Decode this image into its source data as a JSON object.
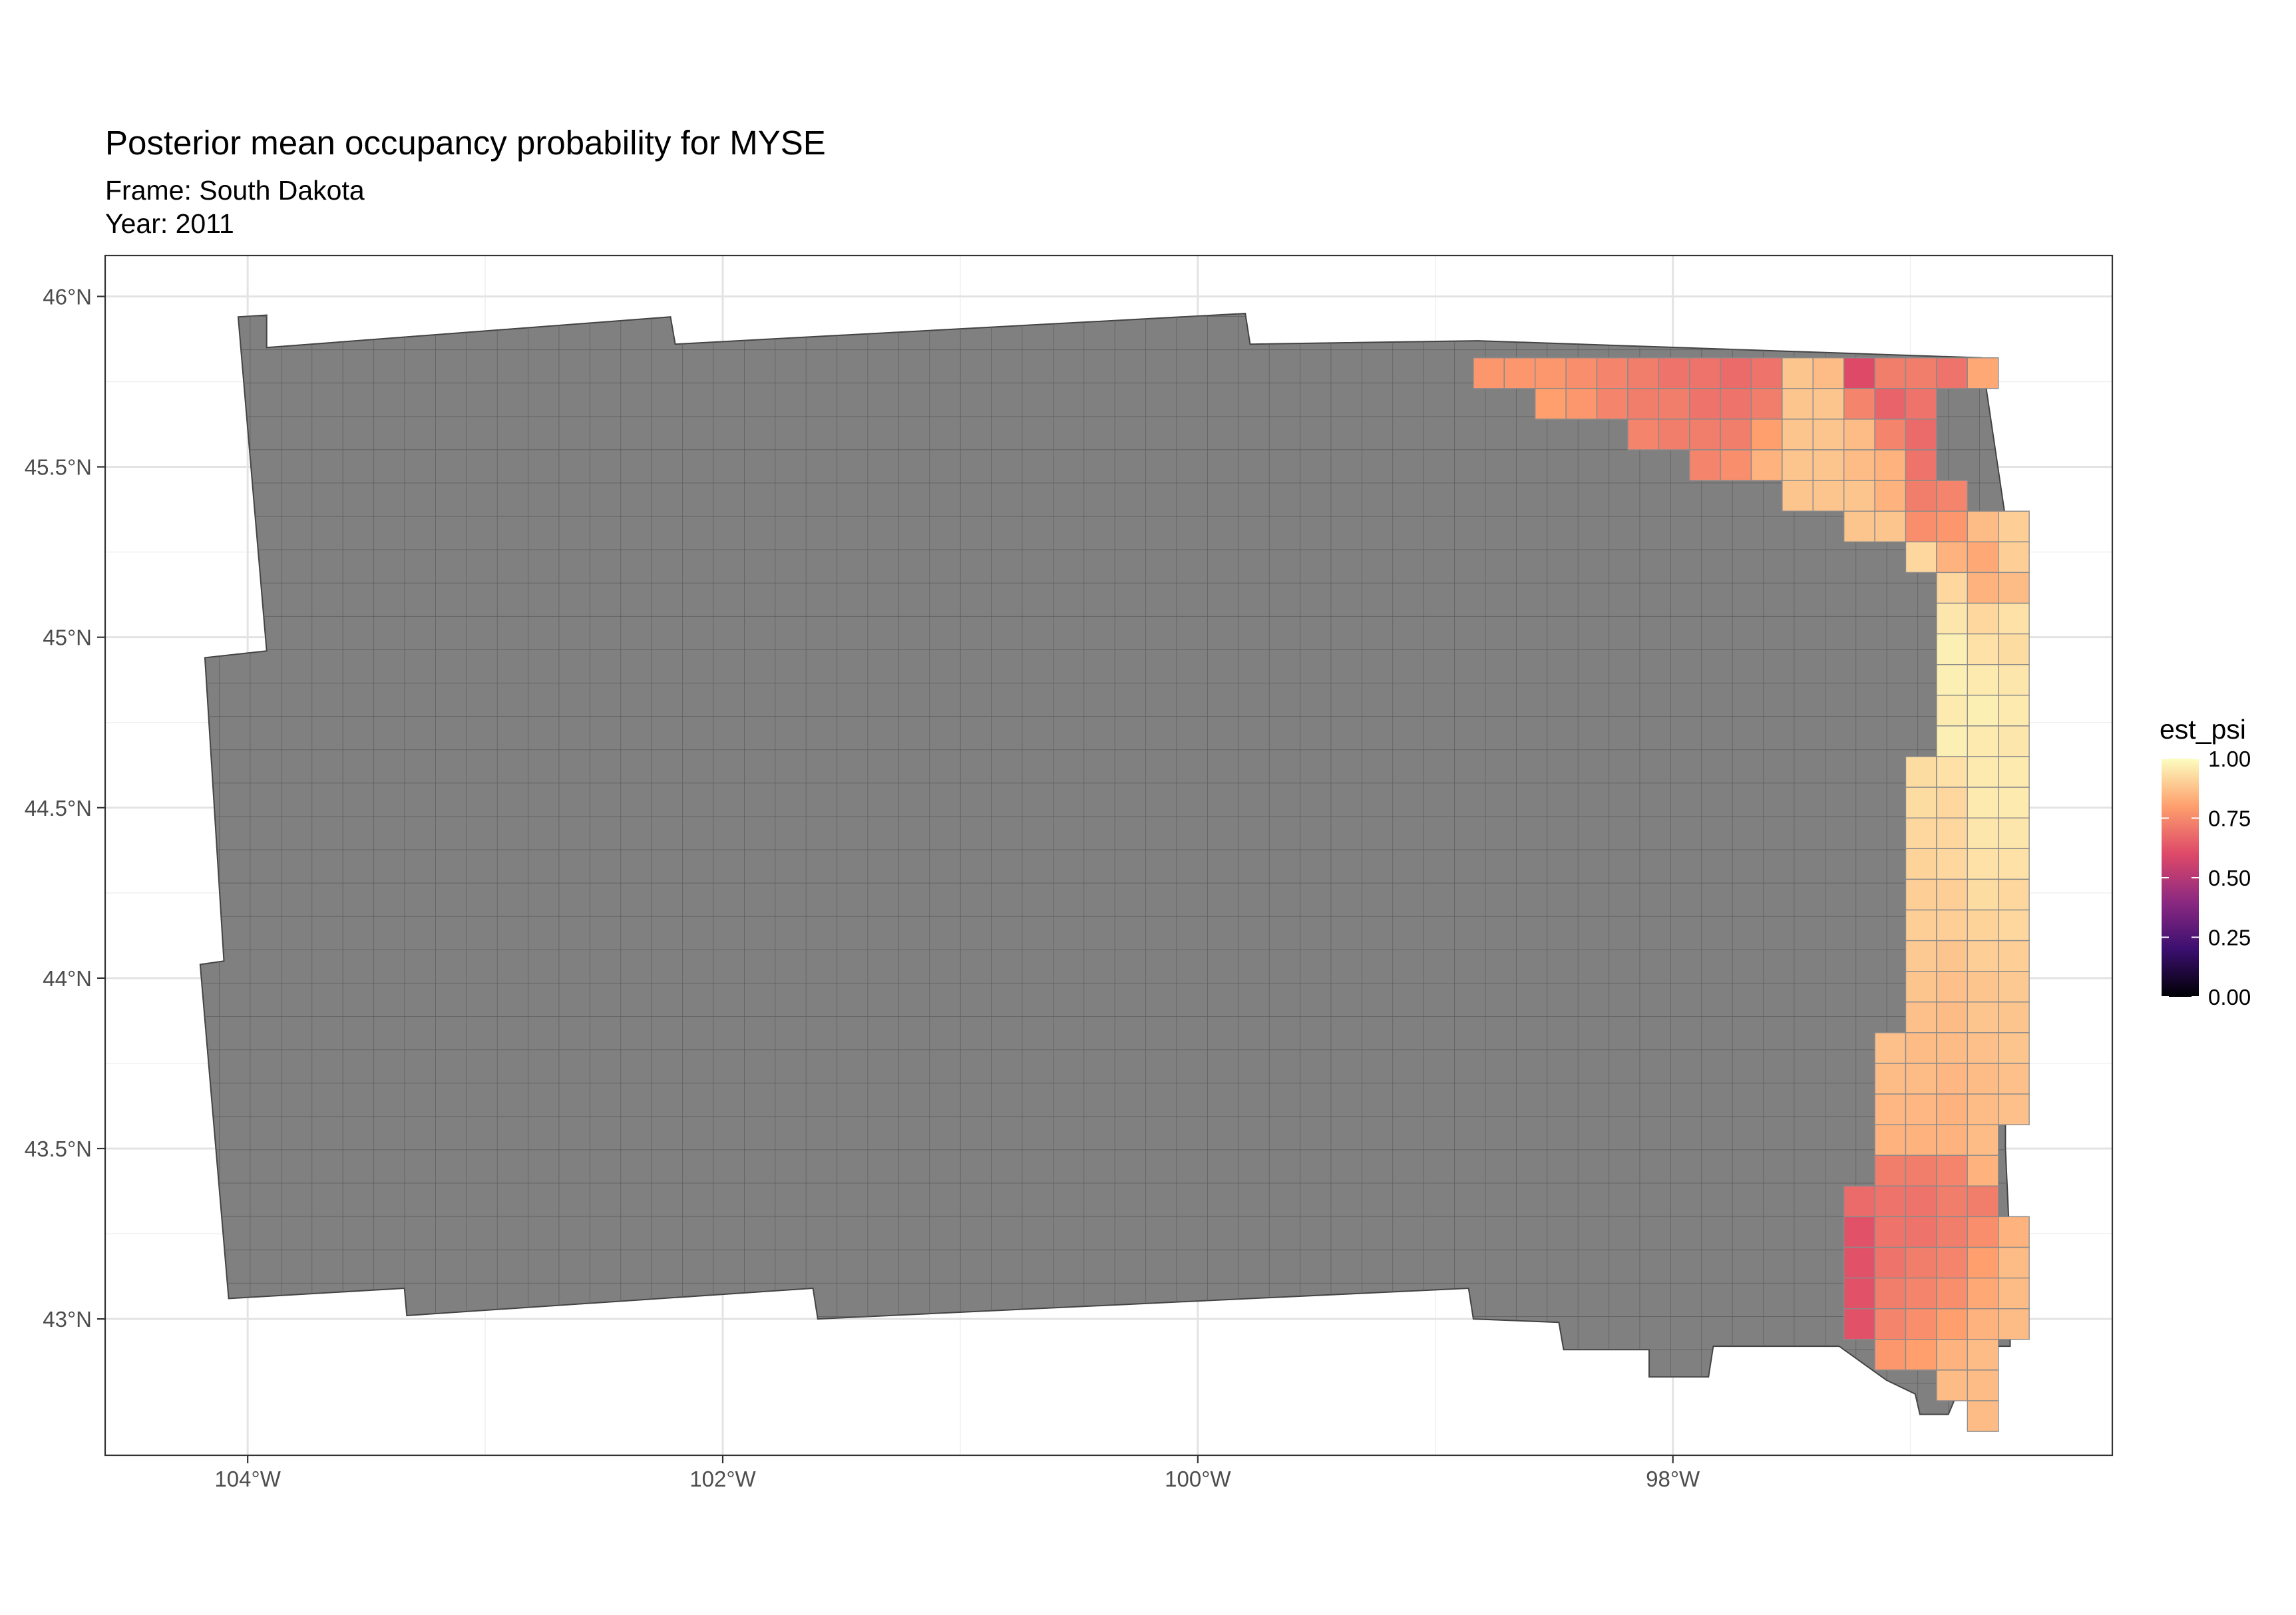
{
  "chart_data": {
    "type": "heatmap",
    "title": "Posterior mean occupancy probability for MYSE",
    "subtitle_lines": [
      "Frame: South Dakota",
      "Year: 2011"
    ],
    "x_axis": {
      "ticks": [
        -104,
        -102,
        -100,
        -98
      ],
      "tick_labels": [
        "104°W",
        "102°W",
        "100°W",
        "98°W"
      ],
      "range": [
        -104.6,
        -96.15
      ]
    },
    "y_axis": {
      "ticks": [
        43,
        43.5,
        44,
        44.5,
        45,
        45.5,
        46
      ],
      "tick_labels": [
        "43°N",
        "43.5°N",
        "44°N",
        "44.5°N",
        "45°N",
        "45.5°N",
        "46°N"
      ],
      "range": [
        42.6,
        46.12
      ]
    },
    "grid": true,
    "legend": {
      "title": "est_psi",
      "placement": "right",
      "ticks": [
        0.0,
        0.25,
        0.5,
        0.75,
        1.0
      ],
      "tick_labels": [
        "0.00",
        "0.25",
        "0.50",
        "0.75",
        "1.00"
      ],
      "palette": [
        "#000004",
        "#3b0f70",
        "#8c2981",
        "#de4968",
        "#fe9f6d",
        "#fcfdbf"
      ]
    },
    "na_color": "#808080",
    "cell_size_deg": {
      "lon": 0.13,
      "lat": 0.09
    },
    "frame_outline_lonlat": [
      [
        -104.04,
        45.94
      ],
      [
        -103.92,
        45.945
      ],
      [
        -103.92,
        45.85
      ],
      [
        -102.22,
        45.94
      ],
      [
        -102.2,
        45.86
      ],
      [
        -99.8,
        45.95
      ],
      [
        -99.78,
        45.86
      ],
      [
        -98.82,
        45.87
      ],
      [
        -96.7,
        45.82
      ],
      [
        -96.6,
        45.35
      ],
      [
        -96.6,
        43.5
      ],
      [
        -96.58,
        43.2
      ],
      [
        -96.58,
        42.92
      ],
      [
        -96.72,
        42.92
      ],
      [
        -96.84,
        42.72
      ],
      [
        -96.96,
        42.72
      ],
      [
        -96.98,
        42.78
      ],
      [
        -97.1,
        42.82
      ],
      [
        -97.3,
        42.92
      ],
      [
        -97.83,
        42.92
      ],
      [
        -97.85,
        42.83
      ],
      [
        -98.1,
        42.83
      ],
      [
        -98.1,
        42.91
      ],
      [
        -98.46,
        42.91
      ],
      [
        -98.48,
        42.99
      ],
      [
        -98.84,
        43.0
      ],
      [
        -98.86,
        43.09
      ],
      [
        -101.6,
        43.0
      ],
      [
        -101.62,
        43.09
      ],
      [
        -103.33,
        43.01
      ],
      [
        -103.34,
        43.09
      ],
      [
        -104.08,
        43.06
      ],
      [
        -104.2,
        44.04
      ],
      [
        -104.1,
        44.05
      ],
      [
        -104.18,
        44.94
      ],
      [
        -103.92,
        44.96
      ]
    ],
    "estimated_cells": {
      "description": "grid cells with est_psi estimates; lon/lat are cell lower-left corners",
      "cells": [
        {
          "lon": -98.84,
          "lat": 45.73,
          "value": 0.78
        },
        {
          "lon": -98.71,
          "lat": 45.73,
          "value": 0.78
        },
        {
          "lon": -98.58,
          "lat": 45.73,
          "value": 0.78
        },
        {
          "lon": -98.45,
          "lat": 45.73,
          "value": 0.76
        },
        {
          "lon": -98.32,
          "lat": 45.73,
          "value": 0.74
        },
        {
          "lon": -98.19,
          "lat": 45.73,
          "value": 0.72
        },
        {
          "lon": -98.06,
          "lat": 45.73,
          "value": 0.7
        },
        {
          "lon": -97.93,
          "lat": 45.73,
          "value": 0.7
        },
        {
          "lon": -97.8,
          "lat": 45.73,
          "value": 0.68
        },
        {
          "lon": -97.67,
          "lat": 45.73,
          "value": 0.7
        },
        {
          "lon": -97.54,
          "lat": 45.73,
          "value": 0.88
        },
        {
          "lon": -97.41,
          "lat": 45.73,
          "value": 0.86
        },
        {
          "lon": -97.28,
          "lat": 45.73,
          "value": 0.6
        },
        {
          "lon": -97.15,
          "lat": 45.73,
          "value": 0.72
        },
        {
          "lon": -97.02,
          "lat": 45.73,
          "value": 0.72
        },
        {
          "lon": -96.89,
          "lat": 45.73,
          "value": 0.7
        },
        {
          "lon": -96.76,
          "lat": 45.73,
          "value": 0.82
        },
        {
          "lon": -98.58,
          "lat": 45.64,
          "value": 0.8
        },
        {
          "lon": -98.45,
          "lat": 45.64,
          "value": 0.78
        },
        {
          "lon": -98.32,
          "lat": 45.64,
          "value": 0.74
        },
        {
          "lon": -98.19,
          "lat": 45.64,
          "value": 0.72
        },
        {
          "lon": -98.06,
          "lat": 45.64,
          "value": 0.72
        },
        {
          "lon": -97.93,
          "lat": 45.64,
          "value": 0.7
        },
        {
          "lon": -97.8,
          "lat": 45.64,
          "value": 0.7
        },
        {
          "lon": -97.67,
          "lat": 45.64,
          "value": 0.72
        },
        {
          "lon": -97.54,
          "lat": 45.64,
          "value": 0.88
        },
        {
          "lon": -97.41,
          "lat": 45.64,
          "value": 0.88
        },
        {
          "lon": -97.28,
          "lat": 45.64,
          "value": 0.74
        },
        {
          "lon": -97.15,
          "lat": 45.64,
          "value": 0.66
        },
        {
          "lon": -97.02,
          "lat": 45.64,
          "value": 0.7
        },
        {
          "lon": -98.19,
          "lat": 45.55,
          "value": 0.74
        },
        {
          "lon": -98.06,
          "lat": 45.55,
          "value": 0.72
        },
        {
          "lon": -97.93,
          "lat": 45.55,
          "value": 0.72
        },
        {
          "lon": -97.8,
          "lat": 45.55,
          "value": 0.72
        },
        {
          "lon": -97.67,
          "lat": 45.55,
          "value": 0.8
        },
        {
          "lon": -97.54,
          "lat": 45.55,
          "value": 0.88
        },
        {
          "lon": -97.41,
          "lat": 45.55,
          "value": 0.88
        },
        {
          "lon": -97.28,
          "lat": 45.55,
          "value": 0.86
        },
        {
          "lon": -97.15,
          "lat": 45.55,
          "value": 0.74
        },
        {
          "lon": -97.02,
          "lat": 45.55,
          "value": 0.68
        },
        {
          "lon": -97.93,
          "lat": 45.46,
          "value": 0.74
        },
        {
          "lon": -97.8,
          "lat": 45.46,
          "value": 0.76
        },
        {
          "lon": -97.67,
          "lat": 45.46,
          "value": 0.84
        },
        {
          "lon": -97.54,
          "lat": 45.46,
          "value": 0.88
        },
        {
          "lon": -97.41,
          "lat": 45.46,
          "value": 0.88
        },
        {
          "lon": -97.28,
          "lat": 45.46,
          "value": 0.86
        },
        {
          "lon": -97.15,
          "lat": 45.46,
          "value": 0.84
        },
        {
          "lon": -97.02,
          "lat": 45.46,
          "value": 0.7
        },
        {
          "lon": -97.54,
          "lat": 45.37,
          "value": 0.88
        },
        {
          "lon": -97.41,
          "lat": 45.37,
          "value": 0.88
        },
        {
          "lon": -97.28,
          "lat": 45.37,
          "value": 0.88
        },
        {
          "lon": -97.15,
          "lat": 45.37,
          "value": 0.84
        },
        {
          "lon": -97.02,
          "lat": 45.37,
          "value": 0.72
        },
        {
          "lon": -96.89,
          "lat": 45.37,
          "value": 0.74
        },
        {
          "lon": -97.28,
          "lat": 45.28,
          "value": 0.88
        },
        {
          "lon": -97.15,
          "lat": 45.28,
          "value": 0.88
        },
        {
          "lon": -97.02,
          "lat": 45.28,
          "value": 0.76
        },
        {
          "lon": -96.89,
          "lat": 45.28,
          "value": 0.78
        },
        {
          "lon": -96.76,
          "lat": 45.28,
          "value": 0.86
        },
        {
          "lon": -96.63,
          "lat": 45.28,
          "value": 0.9
        },
        {
          "lon": -97.02,
          "lat": 45.19,
          "value": 0.92
        },
        {
          "lon": -96.89,
          "lat": 45.19,
          "value": 0.84
        },
        {
          "lon": -96.76,
          "lat": 45.19,
          "value": 0.82
        },
        {
          "lon": -96.63,
          "lat": 45.19,
          "value": 0.9
        },
        {
          "lon": -96.89,
          "lat": 45.1,
          "value": 0.92
        },
        {
          "lon": -96.76,
          "lat": 45.1,
          "value": 0.84
        },
        {
          "lon": -96.63,
          "lat": 45.1,
          "value": 0.86
        },
        {
          "lon": -96.89,
          "lat": 45.01,
          "value": 0.95
        },
        {
          "lon": -96.76,
          "lat": 45.01,
          "value": 0.92
        },
        {
          "lon": -96.63,
          "lat": 45.01,
          "value": 0.94
        },
        {
          "lon": -96.89,
          "lat": 44.92,
          "value": 0.97
        },
        {
          "lon": -96.76,
          "lat": 44.92,
          "value": 0.94
        },
        {
          "lon": -96.63,
          "lat": 44.92,
          "value": 0.93
        },
        {
          "lon": -96.89,
          "lat": 44.83,
          "value": 0.97
        },
        {
          "lon": -96.76,
          "lat": 44.83,
          "value": 0.96
        },
        {
          "lon": -96.63,
          "lat": 44.83,
          "value": 0.95
        },
        {
          "lon": -96.89,
          "lat": 44.74,
          "value": 0.96
        },
        {
          "lon": -96.76,
          "lat": 44.74,
          "value": 0.97
        },
        {
          "lon": -96.63,
          "lat": 44.74,
          "value": 0.96
        },
        {
          "lon": -96.89,
          "lat": 44.65,
          "value": 0.97
        },
        {
          "lon": -96.76,
          "lat": 44.65,
          "value": 0.96
        },
        {
          "lon": -96.63,
          "lat": 44.65,
          "value": 0.95
        },
        {
          "lon": -97.02,
          "lat": 44.56,
          "value": 0.93
        },
        {
          "lon": -96.89,
          "lat": 44.56,
          "value": 0.94
        },
        {
          "lon": -96.76,
          "lat": 44.56,
          "value": 0.96
        },
        {
          "lon": -96.63,
          "lat": 44.56,
          "value": 0.96
        },
        {
          "lon": -97.02,
          "lat": 44.47,
          "value": 0.93
        },
        {
          "lon": -96.89,
          "lat": 44.47,
          "value": 0.92
        },
        {
          "lon": -96.76,
          "lat": 44.47,
          "value": 0.96
        },
        {
          "lon": -96.63,
          "lat": 44.47,
          "value": 0.96
        },
        {
          "lon": -97.02,
          "lat": 44.38,
          "value": 0.92
        },
        {
          "lon": -96.89,
          "lat": 44.38,
          "value": 0.92
        },
        {
          "lon": -96.76,
          "lat": 44.38,
          "value": 0.95
        },
        {
          "lon": -96.63,
          "lat": 44.38,
          "value": 0.95
        },
        {
          "lon": -97.02,
          "lat": 44.29,
          "value": 0.91
        },
        {
          "lon": -96.89,
          "lat": 44.29,
          "value": 0.92
        },
        {
          "lon": -96.76,
          "lat": 44.29,
          "value": 0.94
        },
        {
          "lon": -96.63,
          "lat": 44.29,
          "value": 0.94
        },
        {
          "lon": -97.02,
          "lat": 44.2,
          "value": 0.9
        },
        {
          "lon": -96.89,
          "lat": 44.2,
          "value": 0.9
        },
        {
          "lon": -96.76,
          "lat": 44.2,
          "value": 0.93
        },
        {
          "lon": -96.63,
          "lat": 44.2,
          "value": 0.92
        },
        {
          "lon": -97.02,
          "lat": 44.11,
          "value": 0.9
        },
        {
          "lon": -96.89,
          "lat": 44.11,
          "value": 0.9
        },
        {
          "lon": -96.76,
          "lat": 44.11,
          "value": 0.91
        },
        {
          "lon": -96.63,
          "lat": 44.11,
          "value": 0.92
        },
        {
          "lon": -97.02,
          "lat": 44.02,
          "value": 0.89
        },
        {
          "lon": -96.89,
          "lat": 44.02,
          "value": 0.88
        },
        {
          "lon": -96.76,
          "lat": 44.02,
          "value": 0.9
        },
        {
          "lon": -96.63,
          "lat": 44.02,
          "value": 0.9
        },
        {
          "lon": -97.02,
          "lat": 43.93,
          "value": 0.88
        },
        {
          "lon": -96.89,
          "lat": 43.93,
          "value": 0.87
        },
        {
          "lon": -96.76,
          "lat": 43.93,
          "value": 0.88
        },
        {
          "lon": -96.63,
          "lat": 43.93,
          "value": 0.89
        },
        {
          "lon": -97.02,
          "lat": 43.84,
          "value": 0.87
        },
        {
          "lon": -96.89,
          "lat": 43.84,
          "value": 0.86
        },
        {
          "lon": -96.76,
          "lat": 43.84,
          "value": 0.88
        },
        {
          "lon": -96.63,
          "lat": 43.84,
          "value": 0.88
        },
        {
          "lon": -97.15,
          "lat": 43.75,
          "value": 0.87
        },
        {
          "lon": -97.02,
          "lat": 43.75,
          "value": 0.86
        },
        {
          "lon": -96.89,
          "lat": 43.75,
          "value": 0.86
        },
        {
          "lon": -96.76,
          "lat": 43.75,
          "value": 0.87
        },
        {
          "lon": -96.63,
          "lat": 43.75,
          "value": 0.88
        },
        {
          "lon": -97.15,
          "lat": 43.66,
          "value": 0.86
        },
        {
          "lon": -97.02,
          "lat": 43.66,
          "value": 0.86
        },
        {
          "lon": -96.89,
          "lat": 43.66,
          "value": 0.85
        },
        {
          "lon": -96.76,
          "lat": 43.66,
          "value": 0.86
        },
        {
          "lon": -96.63,
          "lat": 43.66,
          "value": 0.87
        },
        {
          "lon": -97.15,
          "lat": 43.57,
          "value": 0.85
        },
        {
          "lon": -97.02,
          "lat": 43.57,
          "value": 0.85
        },
        {
          "lon": -96.89,
          "lat": 43.57,
          "value": 0.84
        },
        {
          "lon": -96.76,
          "lat": 43.57,
          "value": 0.86
        },
        {
          "lon": -96.63,
          "lat": 43.57,
          "value": 0.87
        },
        {
          "lon": -97.15,
          "lat": 43.48,
          "value": 0.84
        },
        {
          "lon": -97.02,
          "lat": 43.48,
          "value": 0.84
        },
        {
          "lon": -96.89,
          "lat": 43.48,
          "value": 0.84
        },
        {
          "lon": -96.76,
          "lat": 43.48,
          "value": 0.86
        },
        {
          "lon": -97.15,
          "lat": 43.39,
          "value": 0.72
        },
        {
          "lon": -97.02,
          "lat": 43.39,
          "value": 0.72
        },
        {
          "lon": -96.89,
          "lat": 43.39,
          "value": 0.74
        },
        {
          "lon": -96.76,
          "lat": 43.39,
          "value": 0.84
        },
        {
          "lon": -97.28,
          "lat": 43.3,
          "value": 0.68
        },
        {
          "lon": -97.15,
          "lat": 43.3,
          "value": 0.7
        },
        {
          "lon": -97.02,
          "lat": 43.3,
          "value": 0.7
        },
        {
          "lon": -96.89,
          "lat": 43.3,
          "value": 0.72
        },
        {
          "lon": -96.76,
          "lat": 43.3,
          "value": 0.72
        },
        {
          "lon": -97.28,
          "lat": 43.21,
          "value": 0.62
        },
        {
          "lon": -97.15,
          "lat": 43.21,
          "value": 0.7
        },
        {
          "lon": -97.02,
          "lat": 43.21,
          "value": 0.7
        },
        {
          "lon": -96.89,
          "lat": 43.21,
          "value": 0.72
        },
        {
          "lon": -96.76,
          "lat": 43.21,
          "value": 0.76
        },
        {
          "lon": -96.63,
          "lat": 43.21,
          "value": 0.84
        },
        {
          "lon": -97.28,
          "lat": 43.12,
          "value": 0.62
        },
        {
          "lon": -97.15,
          "lat": 43.12,
          "value": 0.7
        },
        {
          "lon": -97.02,
          "lat": 43.12,
          "value": 0.72
        },
        {
          "lon": -96.89,
          "lat": 43.12,
          "value": 0.74
        },
        {
          "lon": -96.76,
          "lat": 43.12,
          "value": 0.8
        },
        {
          "lon": -96.63,
          "lat": 43.12,
          "value": 0.86
        },
        {
          "lon": -97.28,
          "lat": 43.03,
          "value": 0.62
        },
        {
          "lon": -97.15,
          "lat": 43.03,
          "value": 0.72
        },
        {
          "lon": -97.02,
          "lat": 43.03,
          "value": 0.74
        },
        {
          "lon": -96.89,
          "lat": 43.03,
          "value": 0.76
        },
        {
          "lon": -96.76,
          "lat": 43.03,
          "value": 0.82
        },
        {
          "lon": -96.63,
          "lat": 43.03,
          "value": 0.86
        },
        {
          "lon": -97.28,
          "lat": 42.94,
          "value": 0.62
        },
        {
          "lon": -97.15,
          "lat": 42.94,
          "value": 0.74
        },
        {
          "lon": -97.02,
          "lat": 42.94,
          "value": 0.76
        },
        {
          "lon": -96.89,
          "lat": 42.94,
          "value": 0.8
        },
        {
          "lon": -96.76,
          "lat": 42.94,
          "value": 0.84
        },
        {
          "lon": -96.63,
          "lat": 42.94,
          "value": 0.86
        },
        {
          "lon": -97.15,
          "lat": 42.85,
          "value": 0.78
        },
        {
          "lon": -97.02,
          "lat": 42.85,
          "value": 0.8
        },
        {
          "lon": -96.89,
          "lat": 42.85,
          "value": 0.84
        },
        {
          "lon": -96.76,
          "lat": 42.85,
          "value": 0.86
        },
        {
          "lon": -96.89,
          "lat": 42.76,
          "value": 0.86
        },
        {
          "lon": -96.76,
          "lat": 42.76,
          "value": 0.86
        },
        {
          "lon": -96.76,
          "lat": 42.67,
          "value": 0.86
        }
      ]
    }
  }
}
